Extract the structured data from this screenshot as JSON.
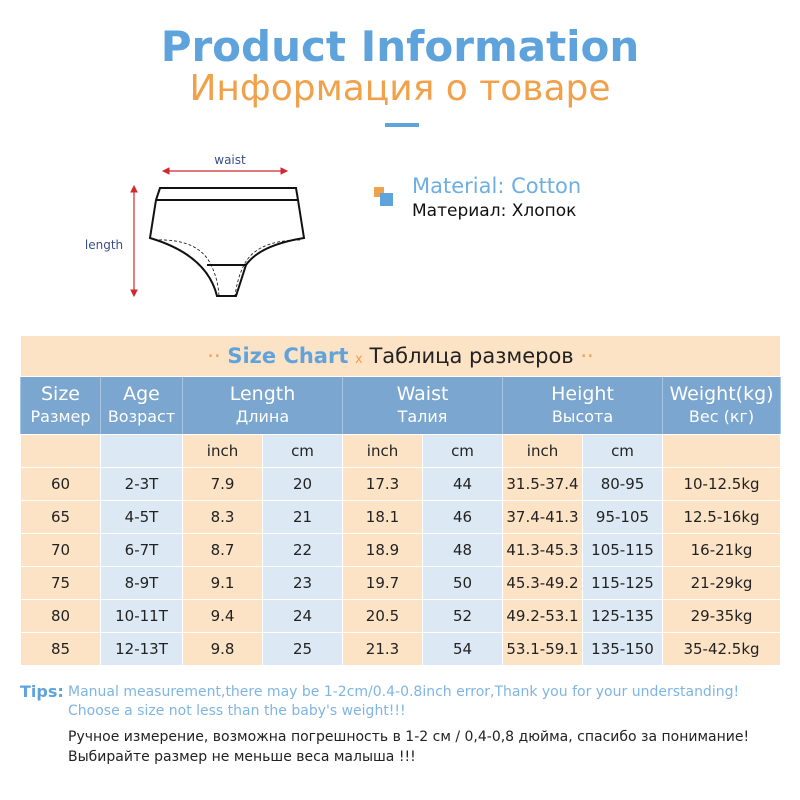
{
  "header": {
    "title": "Product Information",
    "subtitle": "Информация о товаре"
  },
  "diagram": {
    "waist_label": "waist",
    "length_label": "length"
  },
  "material": {
    "en": "Material: Cotton",
    "ru": "Материал: Хлопок"
  },
  "colors": {
    "blue": "#5fa3dc",
    "orange": "#f0a14a",
    "header_blue": "#7aa6cf",
    "peach": "#fce3c6",
    "light_blue": "#dce9f5",
    "arrow_red": "#d0282e"
  },
  "table": {
    "title_dots": "··",
    "title_en": "Size Chart",
    "title_x": "x",
    "title_ru": "Таблица размеров",
    "headers": [
      {
        "en": "Size",
        "ru": "Размер"
      },
      {
        "en": "Age",
        "ru": "Возраст"
      },
      {
        "en": "Length",
        "ru": "Длина"
      },
      {
        "en": "Waist",
        "ru": "Талия"
      },
      {
        "en": "Height",
        "ru": "Высота"
      },
      {
        "en": "Weight(kg)",
        "ru": "Вес (кг)"
      }
    ],
    "units": [
      "inch",
      "cm",
      "inch",
      "cm",
      "inch",
      "cm"
    ],
    "rows": [
      [
        "60",
        "2-3T",
        "7.9",
        "20",
        "17.3",
        "44",
        "31.5-37.4",
        "80-95",
        "10-12.5kg"
      ],
      [
        "65",
        "4-5T",
        "8.3",
        "21",
        "18.1",
        "46",
        "37.4-41.3",
        "95-105",
        "12.5-16kg"
      ],
      [
        "70",
        "6-7T",
        "8.7",
        "22",
        "18.9",
        "48",
        "41.3-45.3",
        "105-115",
        "16-21kg"
      ],
      [
        "75",
        "8-9T",
        "9.1",
        "23",
        "19.7",
        "50",
        "45.3-49.2",
        "115-125",
        "21-29kg"
      ],
      [
        "80",
        "10-11T",
        "9.4",
        "24",
        "20.5",
        "52",
        "49.2-53.1",
        "125-135",
        "29-35kg"
      ],
      [
        "85",
        "12-13T",
        "9.8",
        "25",
        "21.3",
        "54",
        "53.1-59.1",
        "135-150",
        "35-42.5kg"
      ]
    ]
  },
  "tips": {
    "label": "Tips:",
    "en1": "Manual measurement,there may be 1-2cm/0.4-0.8inch error,Thank you for your understanding!",
    "en2": "Choose a size not less than the baby's weight!!!",
    "ru1": "Ручное измерение, возможна погрешность в 1-2 см / 0,4-0,8 дюйма, спасибо за понимание!",
    "ru2": "Выбирайте размер не меньше веса малыша !!!"
  }
}
